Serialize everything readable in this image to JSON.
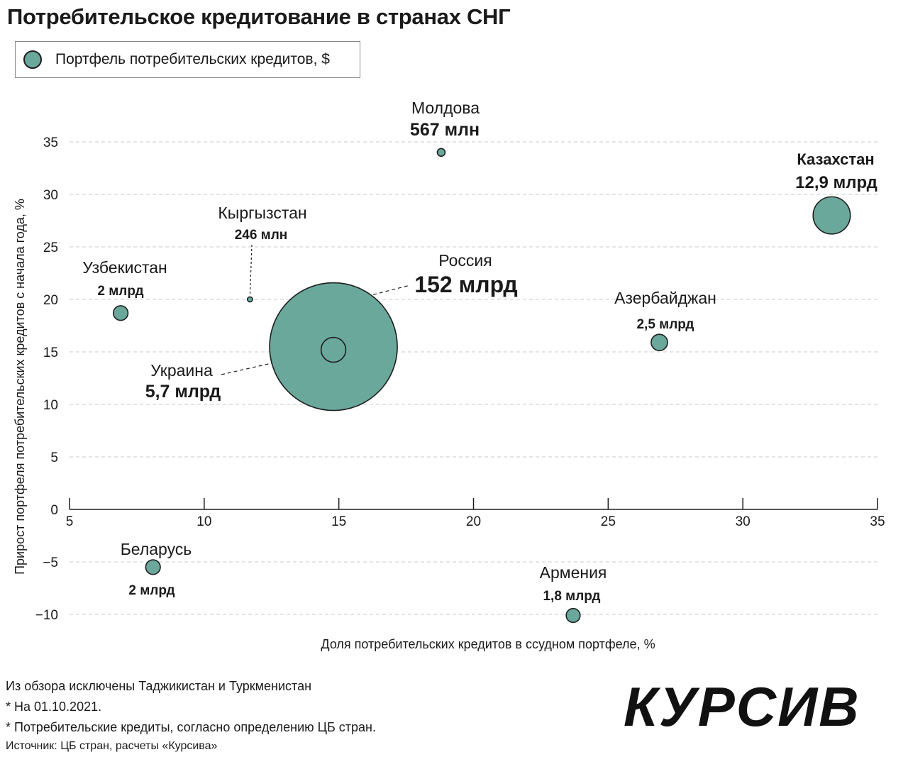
{
  "title": "Потребительское кредитование в странах СНГ",
  "legend": {
    "label": "Портфель потребительских кредитов, $"
  },
  "colors": {
    "bubble": "#6aa89c",
    "outline": "#1e1e1e",
    "grid": "#c8c8c8"
  },
  "chart_data": {
    "type": "scatter",
    "xlabel": "Доля потребительских кредитов в ссудном портфеле, %",
    "ylabel": "Прирост  портфеля потребительских кредитов с начала года, %",
    "xlim": [
      5,
      35
    ],
    "ylim": [
      -12,
      38
    ],
    "xticks": [
      "5",
      "10",
      "15",
      "20",
      "25",
      "30",
      "35"
    ],
    "yticks": [
      "35",
      "30",
      "25",
      "20",
      "15",
      "10",
      "5",
      "0",
      "−5",
      "−10"
    ],
    "grid": "horizontal dashed",
    "points": [
      {
        "name": "Россия",
        "value_label": "152 млрд",
        "x": 14.8,
        "y": 15.5,
        "size_bn": 152
      },
      {
        "name": "Казахстан",
        "value_label": "12,9 млрд",
        "x": 33.3,
        "y": 28,
        "size_bn": 12.9
      },
      {
        "name": "Украина",
        "value_label": "5,7 млрд",
        "x": 14.8,
        "y": 15.2,
        "size_bn": 5.7
      },
      {
        "name": "Азербайджан",
        "value_label": "2,5 млрд",
        "x": 26.9,
        "y": 15.9,
        "size_bn": 2.5
      },
      {
        "name": "Узбекистан",
        "value_label": "2 млрд",
        "x": 6.9,
        "y": 18.7,
        "size_bn": 2
      },
      {
        "name": "Беларусь",
        "value_label": "2 млрд",
        "x": 8.1,
        "y": -5.5,
        "size_bn": 2
      },
      {
        "name": "Армения",
        "value_label": "1,8 млрд",
        "x": 23.7,
        "y": -10.1,
        "size_bn": 1.8
      },
      {
        "name": "Молдова",
        "value_label": "567 млн",
        "x": 18.8,
        "y": 34,
        "size_bn": 0.567
      },
      {
        "name": "Кыргызстан",
        "value_label": "246 млн",
        "x": 11.7,
        "y": 20,
        "size_bn": 0.246
      }
    ]
  },
  "notes": [
    "Из обзора исключены Таджикистан и Туркменистан",
    "* На 01.10.2021.",
    "* Потребительские кредиты, согласно определению ЦБ стран."
  ],
  "source": "Источник: ЦБ стран, расчеты «Курсива»",
  "logo_text": "КУРСИВ"
}
